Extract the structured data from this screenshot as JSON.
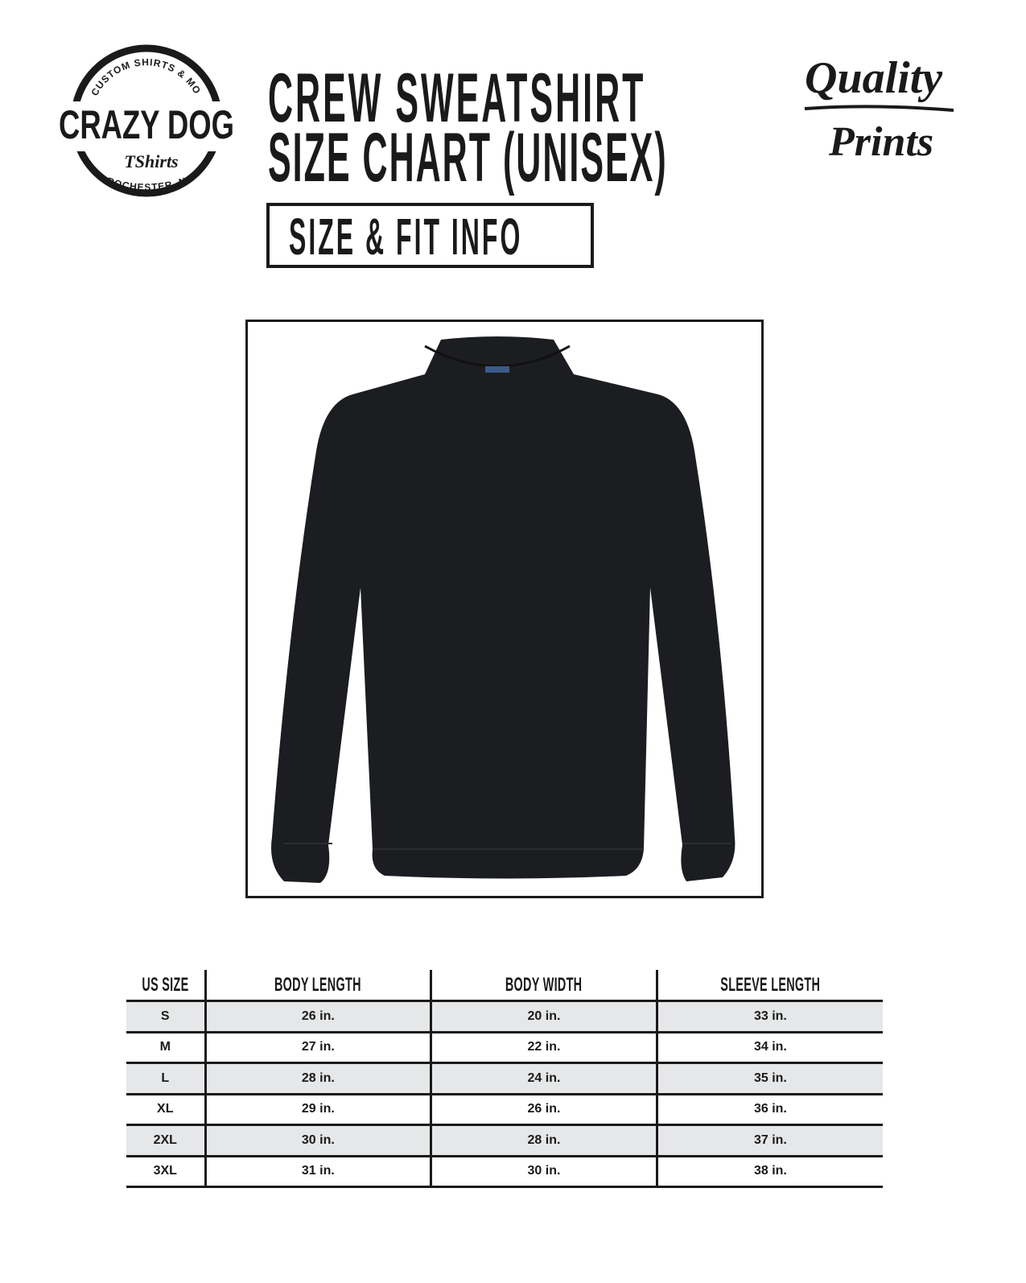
{
  "brand_logo": {
    "name": "CRAZY DOG",
    "sub": "TShirts",
    "top_arc": "CUSTOM SHIRTS & MORE",
    "bottom_arc": "ROCHESTER, NY"
  },
  "quality_logo": {
    "line1": "Quality",
    "line2": "Prints"
  },
  "header": {
    "title_line1": "CREW SWEATSHIRT",
    "title_line2": "SIZE CHART (UNISEX)",
    "subtitle": "SIZE & FIT INFO"
  },
  "product_image": {
    "description_icon": "crew-sweatshirt",
    "color": "#1c1d20"
  },
  "size_table": {
    "columns": [
      "US SIZE",
      "BODY LENGTH",
      "BODY WIDTH",
      "SLEEVE LENGTH"
    ],
    "rows": [
      [
        "S",
        "26 in.",
        "20 in.",
        "33 in."
      ],
      [
        "M",
        "27 in.",
        "22 in.",
        "34 in."
      ],
      [
        "L",
        "28 in.",
        "24 in.",
        "35 in."
      ],
      [
        "XL",
        "29 in.",
        "26 in.",
        "36 in."
      ],
      [
        "2XL",
        "30 in.",
        "28 in.",
        "37 in."
      ],
      [
        "3XL",
        "31 in.",
        "30 in.",
        "38 in."
      ]
    ],
    "shade_color": "#e6e7e8"
  }
}
